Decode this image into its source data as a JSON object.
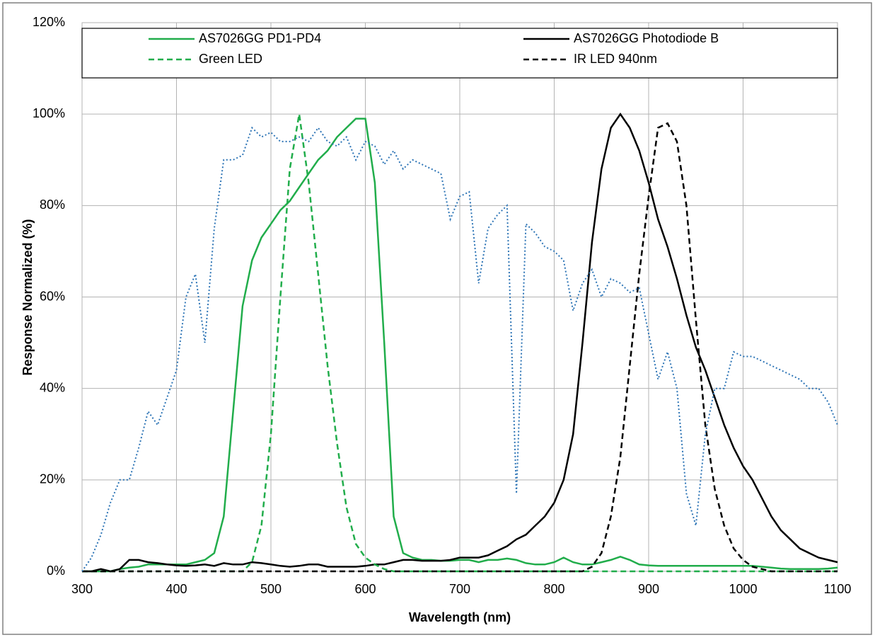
{
  "chart_data": {
    "type": "line",
    "xlabel": "Wavelength (nm)",
    "ylabel": "Response  Normalized (%)",
    "x": [
      300,
      310,
      320,
      330,
      340,
      350,
      360,
      370,
      380,
      390,
      400,
      410,
      420,
      430,
      440,
      450,
      460,
      470,
      480,
      490,
      500,
      510,
      520,
      530,
      540,
      550,
      560,
      570,
      580,
      590,
      600,
      610,
      620,
      630,
      640,
      650,
      660,
      670,
      680,
      690,
      700,
      710,
      720,
      730,
      740,
      750,
      760,
      770,
      780,
      790,
      800,
      810,
      820,
      830,
      840,
      850,
      860,
      870,
      880,
      890,
      900,
      910,
      920,
      930,
      940,
      950,
      960,
      970,
      980,
      990,
      1000,
      1010,
      1020,
      1030,
      1040,
      1050,
      1060,
      1070,
      1080,
      1090,
      1100
    ],
    "series": [
      {
        "name": "AS7026GG PD1-PD4",
        "color": "#21ad4b",
        "dash": "solid",
        "values": [
          0,
          0,
          0,
          0,
          0.5,
          0.8,
          1,
          1.5,
          1.5,
          1.5,
          1.5,
          1.5,
          2,
          2.5,
          4,
          12,
          35,
          58,
          68,
          73,
          76,
          79,
          81,
          84,
          87,
          90,
          92,
          95,
          97,
          99,
          99,
          85,
          50,
          12,
          4,
          3,
          2.5,
          2.5,
          2.3,
          2.3,
          2.5,
          2.5,
          2,
          2.5,
          2.5,
          2.8,
          2.5,
          1.8,
          1.5,
          1.5,
          2,
          3,
          2,
          1.5,
          1.5,
          2,
          2.5,
          3.2,
          2.5,
          1.5,
          1.3,
          1.2,
          1.2,
          1.2,
          1.2,
          1.2,
          1.2,
          1.2,
          1.2,
          1.2,
          1.2,
          1.2,
          1,
          0.8,
          0.6,
          0.5,
          0.5,
          0.5,
          0.5,
          0.6,
          0.8
        ]
      },
      {
        "name": "AS7026GG Photodiode B",
        "color": "#000000",
        "dash": "solid",
        "values": [
          0,
          0,
          0.5,
          0,
          0.5,
          2.5,
          2.5,
          2,
          1.8,
          1.5,
          1.3,
          1.2,
          1.3,
          1.5,
          1.2,
          1.8,
          1.5,
          1.5,
          2,
          1.8,
          1.5,
          1.2,
          1,
          1.2,
          1.5,
          1.5,
          1,
          1,
          1,
          1,
          1.2,
          1.5,
          1.5,
          2,
          2.5,
          2.5,
          2.3,
          2.3,
          2.3,
          2.5,
          3,
          3,
          3,
          3.5,
          4.5,
          5.5,
          7,
          8,
          10,
          12,
          15,
          20,
          30,
          50,
          72,
          88,
          97,
          100,
          97,
          92,
          85,
          77,
          71,
          64,
          56,
          49,
          44,
          38,
          32,
          27,
          23,
          20,
          16,
          12,
          9,
          7,
          5,
          4,
          3,
          2.5,
          2
        ]
      },
      {
        "name": "Green LED",
        "color": "#21ad4b",
        "dash": "dashed",
        "values": [
          0,
          0,
          0,
          0,
          0,
          0,
          0,
          0,
          0,
          0,
          0,
          0,
          0,
          0,
          0,
          0,
          0,
          0,
          2,
          10,
          30,
          60,
          88,
          100,
          85,
          65,
          45,
          28,
          14,
          6,
          3,
          1.5,
          0.5,
          0,
          0,
          0,
          0,
          0,
          0,
          0,
          0,
          0,
          0,
          0,
          0,
          0,
          0,
          0,
          0,
          0,
          0,
          0,
          0,
          0,
          0,
          0,
          0,
          0,
          0,
          0,
          0,
          0,
          0,
          0,
          0,
          0,
          0,
          0,
          0,
          0,
          0,
          0,
          0,
          0,
          0,
          0,
          0,
          0,
          0,
          0,
          0
        ]
      },
      {
        "name": "IR LED 940nm",
        "color": "#000000",
        "dash": "dashed",
        "values": [
          0,
          0,
          0,
          0,
          0,
          0,
          0,
          0,
          0,
          0,
          0,
          0,
          0,
          0,
          0,
          0,
          0,
          0,
          0,
          0,
          0,
          0,
          0,
          0,
          0,
          0,
          0,
          0,
          0,
          0,
          0,
          0,
          0,
          0,
          0,
          0,
          0,
          0,
          0,
          0,
          0,
          0,
          0,
          0,
          0,
          0,
          0,
          0,
          0,
          0,
          0,
          0,
          0,
          0,
          1,
          4,
          12,
          25,
          45,
          65,
          82,
          97,
          98,
          94,
          80,
          55,
          32,
          18,
          10,
          5,
          2.5,
          1,
          0.5,
          0,
          0,
          0,
          0,
          0,
          0,
          0,
          0
        ]
      },
      {
        "color": "#2e75b6",
        "dash": "dotted",
        "values": [
          0,
          3,
          8,
          15,
          20,
          20,
          27,
          35,
          32,
          38,
          44,
          60,
          65,
          50,
          75,
          90,
          90,
          91,
          97,
          95,
          96,
          94,
          94,
          95,
          94,
          97,
          94,
          93,
          95,
          90,
          94,
          93,
          89,
          92,
          88,
          90,
          89,
          88,
          87,
          77,
          82,
          83,
          63,
          75,
          78,
          80,
          17,
          76,
          74,
          71,
          70,
          68,
          57,
          63,
          66,
          60,
          64,
          63,
          61,
          62,
          52,
          42,
          48,
          40,
          17,
          10,
          30,
          40,
          40,
          48,
          47,
          47,
          46,
          45,
          44,
          43,
          42,
          40,
          40,
          37,
          32
        ]
      }
    ],
    "xlim": [
      300,
      1100
    ],
    "xticks": [
      300,
      400,
      500,
      600,
      700,
      800,
      900,
      1000,
      1100
    ],
    "ylim": [
      0,
      120
    ],
    "yticks": [
      {
        "value": 0,
        "label": "0%"
      },
      {
        "value": 20,
        "label": "20%"
      },
      {
        "value": 40,
        "label": "40%"
      },
      {
        "value": 60,
        "label": "60%"
      },
      {
        "value": 80,
        "label": "80%"
      },
      {
        "value": 100,
        "label": "100%"
      },
      {
        "value": 120,
        "label": "120%"
      }
    ],
    "grid": true,
    "legend": "top"
  }
}
